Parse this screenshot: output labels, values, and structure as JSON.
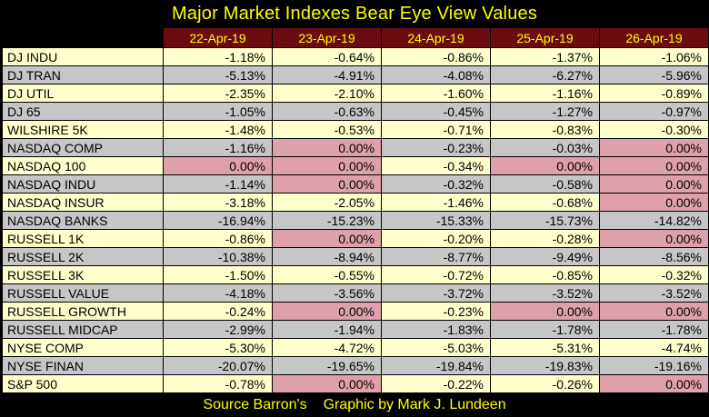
{
  "title": "Major Market Indexes Bear Eye View Values",
  "footer": {
    "source": "Source Barron's",
    "credit": "Graphic by Mark J. Lundeen"
  },
  "colors": {
    "page_bg": "#000000",
    "title_text": "#ffff00",
    "header_bg": "#6b0c10",
    "header_text": "#ffff00",
    "row_cream": "#ffffcc",
    "row_gray": "#c6c6c6",
    "cell_pink": "#dea0aa",
    "cell_text": "#000000"
  },
  "chart_data": {
    "type": "table",
    "title": "Major Market Indexes Bear Eye View Values",
    "columns": [
      "22-Apr-19",
      "23-Apr-19",
      "24-Apr-19",
      "25-Apr-19",
      "26-Apr-19"
    ],
    "zero_value": "0.00%",
    "zero_highlight_color": "#dea0aa",
    "rows": [
      {
        "label": "DJ  INDU",
        "values": [
          "-1.18%",
          "-0.64%",
          "-0.86%",
          "-1.37%",
          "-1.06%"
        ]
      },
      {
        "label": "DJ  TRAN",
        "values": [
          "-5.13%",
          "-4.91%",
          "-4.08%",
          "-6.27%",
          "-5.96%"
        ]
      },
      {
        "label": "DJ  UTIL",
        "values": [
          "-2.35%",
          "-2.10%",
          "-1.60%",
          "-1.16%",
          "-0.89%"
        ]
      },
      {
        "label": "DJ  65",
        "values": [
          "-1.05%",
          "-0.63%",
          "-0.45%",
          "-1.27%",
          "-0.97%"
        ]
      },
      {
        "label": "WILSHIRE 5K",
        "values": [
          "-1.48%",
          "-0.53%",
          "-0.71%",
          "-0.83%",
          "-0.30%"
        ]
      },
      {
        "label": "NASDAQ COMP",
        "values": [
          "-1.16%",
          "0.00%",
          "-0.23%",
          "-0.03%",
          "0.00%"
        ]
      },
      {
        "label": "NASDAQ 100",
        "values": [
          "0.00%",
          "0.00%",
          "-0.34%",
          "0.00%",
          "0.00%"
        ]
      },
      {
        "label": "NASDAQ INDU",
        "values": [
          "-1.14%",
          "0.00%",
          "-0.32%",
          "-0.58%",
          "0.00%"
        ]
      },
      {
        "label": "NASDAQ INSUR",
        "values": [
          "-3.18%",
          "-2.05%",
          "-1.46%",
          "-0.68%",
          "0.00%"
        ]
      },
      {
        "label": "NASDAQ BANKS",
        "values": [
          "-16.94%",
          "-15.23%",
          "-15.33%",
          "-15.73%",
          "-14.82%"
        ]
      },
      {
        "label": "RUSSELL 1K",
        "values": [
          "-0.86%",
          "0.00%",
          "-0.20%",
          "-0.28%",
          "0.00%"
        ]
      },
      {
        "label": "RUSSELL 2K",
        "values": [
          "-10.38%",
          "-8.94%",
          "-8.77%",
          "-9.49%",
          "-8.56%"
        ]
      },
      {
        "label": "RUSSELL 3K",
        "values": [
          "-1.50%",
          "-0.55%",
          "-0.72%",
          "-0.85%",
          "-0.32%"
        ]
      },
      {
        "label": "RUSSELL VALUE",
        "values": [
          "-4.18%",
          "-3.56%",
          "-3.72%",
          "-3.52%",
          "-3.52%"
        ]
      },
      {
        "label": "RUSSELL GROWTH",
        "values": [
          "-0.24%",
          "0.00%",
          "-0.23%",
          "0.00%",
          "0.00%"
        ]
      },
      {
        "label": "RUSSELL MIDCAP",
        "values": [
          "-2.99%",
          "-1.94%",
          "-1.83%",
          "-1.78%",
          "-1.78%"
        ]
      },
      {
        "label": "NYSE COMP",
        "values": [
          "-5.30%",
          "-4.72%",
          "-5.03%",
          "-5.31%",
          "-4.74%"
        ]
      },
      {
        "label": "NYSE FINAN",
        "values": [
          "-20.07%",
          "-19.65%",
          "-19.84%",
          "-19.83%",
          "-19.16%"
        ]
      },
      {
        "label": "S&P 500",
        "values": [
          "-0.78%",
          "0.00%",
          "-0.22%",
          "-0.26%",
          "0.00%"
        ]
      }
    ]
  }
}
